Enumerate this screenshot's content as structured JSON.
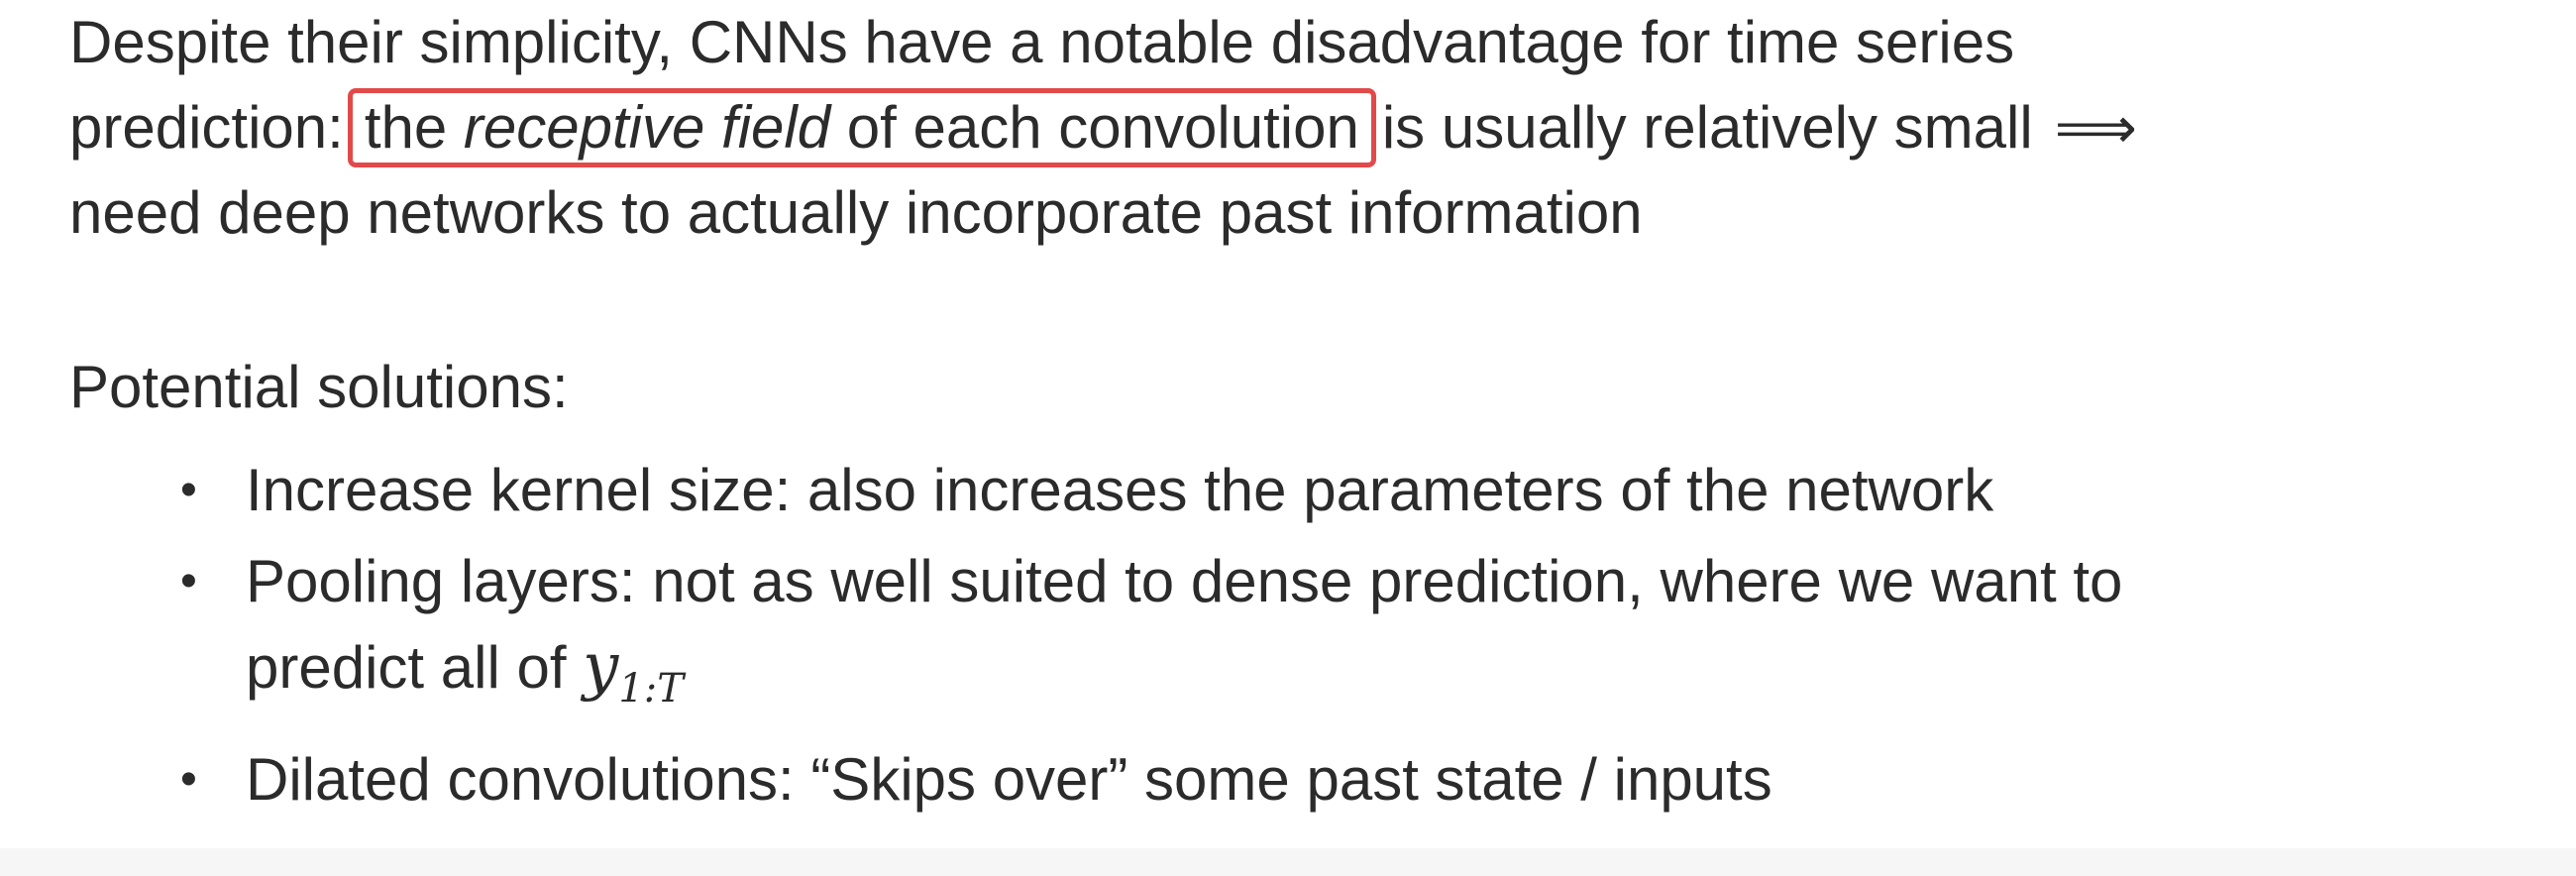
{
  "paragraph": {
    "line1": "Despite their simplicity, CNNs have a notable disadvantage for time series",
    "line2_lead": "prediction:",
    "highlight_pre": "the",
    "highlight_italic": "receptive field",
    "highlight_post": "of each convolution",
    "line2_tail": "is usually relatively small",
    "arrow": "⟹",
    "line3": "need deep networks to actually incorporate past information"
  },
  "solutions": {
    "heading": "Potential solutions:",
    "bullet_symbol": "•",
    "items": [
      {
        "text": "Increase kernel size: also increases the parameters of the network"
      },
      {
        "text": "Pooling layers: not as well suited to dense prediction, where we want to",
        "text_line2": "predict all of",
        "math_var": "y",
        "math_sub": "1:T"
      },
      {
        "text": "Dilated convolutions: “Skips over” some past state / inputs"
      }
    ]
  },
  "colors": {
    "text": "#2b2b2b",
    "highlight_border": "#e24a4a",
    "background": "#ffffff"
  }
}
